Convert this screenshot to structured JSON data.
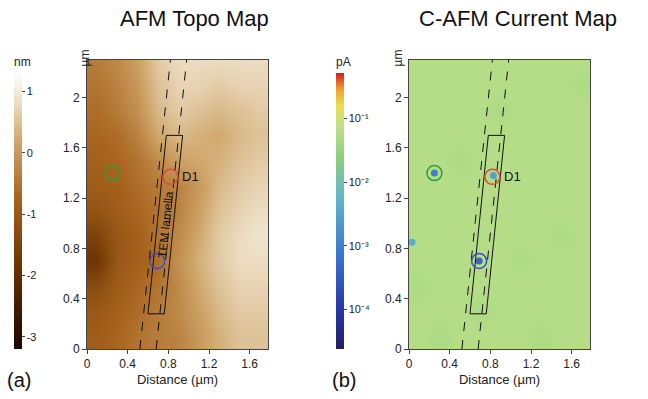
{
  "chart_data": [
    {
      "type": "heatmap",
      "title": "AFM Topo Map",
      "panel": "(a)",
      "x_label": "Distance (µm)",
      "y_label": "µm",
      "x": [
        0.1,
        0.3,
        0.5,
        0.7,
        0.9,
        1.1,
        1.3,
        1.5,
        1.7
      ],
      "y": [
        0.1,
        0.3,
        0.5,
        0.7,
        0.9,
        1.1,
        1.3,
        1.5,
        1.7,
        1.9,
        2.1,
        2.3
      ],
      "z": [
        [
          -0.9,
          -0.7,
          -0.5,
          -0.4,
          -0.3,
          0.0,
          0.3,
          0.5,
          0.5
        ],
        [
          -1.0,
          -0.8,
          -0.6,
          -0.4,
          -0.2,
          0.1,
          0.4,
          0.6,
          0.6
        ],
        [
          -1.3,
          -0.9,
          -0.7,
          -0.5,
          -0.2,
          0.2,
          0.5,
          0.7,
          0.7
        ],
        [
          -1.8,
          -1.0,
          -0.8,
          -0.6,
          -0.1,
          0.3,
          0.6,
          0.8,
          0.8
        ],
        [
          -1.5,
          -1.0,
          -0.8,
          -0.5,
          -0.2,
          0.2,
          0.6,
          0.8,
          0.9
        ],
        [
          -1.1,
          -0.9,
          -0.7,
          -0.5,
          -0.3,
          0.1,
          0.5,
          0.7,
          0.8
        ],
        [
          -0.9,
          -0.8,
          -0.6,
          -0.4,
          -0.3,
          0.0,
          0.4,
          0.6,
          0.7
        ],
        [
          -0.8,
          -0.7,
          -0.5,
          -0.2,
          0.1,
          0.2,
          0.3,
          0.5,
          0.6
        ],
        [
          -0.7,
          -0.6,
          -0.3,
          0.2,
          0.4,
          0.3,
          0.2,
          0.4,
          0.5
        ],
        [
          -0.6,
          -0.4,
          -0.1,
          0.4,
          0.6,
          0.5,
          0.4,
          0.5,
          0.6
        ],
        [
          -0.5,
          -0.3,
          0.0,
          0.5,
          0.7,
          0.7,
          0.6,
          0.7,
          0.7
        ],
        [
          -0.4,
          -0.2,
          0.1,
          0.6,
          0.8,
          0.8,
          0.8,
          0.8,
          0.8
        ]
      ],
      "xlim": [
        0,
        1.78
      ],
      "ylim": [
        0,
        2.3
      ],
      "xticks": [
        0,
        0.4,
        0.8,
        1.2,
        1.6
      ],
      "yticks": [
        0,
        0.4,
        0.8,
        1.2,
        1.6,
        2
      ],
      "colorbar": {
        "title": "nm",
        "range": [
          -3.2,
          1.3
        ],
        "ticks": [
          1,
          0,
          -1,
          -2,
          -3
        ]
      },
      "rectangle": {
        "label": "TEM lamella",
        "corners": [
          [
            0.6,
            0.28
          ],
          [
            0.76,
            0.28
          ],
          [
            0.94,
            1.7
          ],
          [
            0.78,
            1.7
          ]
        ]
      },
      "dashed_lines": [
        [
          [
            0.52,
            0
          ],
          [
            0.82,
            2.3
          ]
        ],
        [
          [
            0.68,
            0
          ],
          [
            0.98,
            2.3
          ]
        ]
      ],
      "circles": [
        {
          "x": 0.25,
          "y": 1.4,
          "color": "#2e9e3e"
        },
        {
          "x": 0.82,
          "y": 1.37,
          "color": "#e0483c",
          "label": "D1"
        },
        {
          "x": 0.69,
          "y": 0.7,
          "color": "#3c4cc8"
        }
      ]
    },
    {
      "type": "heatmap",
      "title": "C-AFM Current Map",
      "panel": "(b)",
      "log": true,
      "x_label": "Distance (µm)",
      "y_label": "µm",
      "x": [
        0.1,
        0.3,
        0.5,
        0.7,
        0.9,
        1.1,
        1.3,
        1.5,
        1.7
      ],
      "y": [
        0.1,
        0.3,
        0.5,
        0.7,
        0.9,
        1.1,
        1.3,
        1.5,
        1.7,
        1.9,
        2.1,
        2.3
      ],
      "z": [
        [
          0.06,
          0.05,
          0.06,
          0.06,
          0.06,
          0.06,
          0.05,
          0.06,
          0.06
        ],
        [
          0.06,
          0.06,
          0.06,
          0.05,
          0.06,
          0.06,
          0.06,
          0.06,
          0.06
        ],
        [
          0.05,
          0.06,
          0.06,
          0.06,
          0.06,
          0.06,
          0.06,
          0.06,
          0.06
        ],
        [
          0.06,
          0.06,
          0.06,
          0.06,
          0.06,
          0.05,
          0.06,
          0.06,
          0.06
        ],
        [
          0.06,
          0.06,
          0.06,
          0.06,
          0.06,
          0.06,
          0.06,
          0.05,
          0.06
        ],
        [
          0.06,
          0.06,
          0.06,
          0.06,
          0.06,
          0.06,
          0.06,
          0.06,
          0.06
        ],
        [
          0.06,
          0.06,
          0.06,
          0.06,
          0.06,
          0.06,
          0.06,
          0.06,
          0.06
        ],
        [
          0.06,
          0.06,
          0.05,
          0.06,
          0.06,
          0.06,
          0.06,
          0.06,
          0.06
        ],
        [
          0.06,
          0.06,
          0.06,
          0.06,
          0.06,
          0.06,
          0.06,
          0.06,
          0.06
        ],
        [
          0.06,
          0.06,
          0.06,
          0.06,
          0.05,
          0.06,
          0.06,
          0.06,
          0.06
        ],
        [
          0.06,
          0.06,
          0.06,
          0.06,
          0.06,
          0.06,
          0.06,
          0.06,
          0.05
        ],
        [
          0.06,
          0.06,
          0.06,
          0.06,
          0.06,
          0.06,
          0.06,
          0.06,
          0.06
        ]
      ],
      "xlim": [
        0,
        1.78
      ],
      "ylim": [
        0,
        2.3
      ],
      "xticks": [
        0,
        0.4,
        0.8,
        1.2,
        1.6
      ],
      "yticks": [
        0,
        0.4,
        0.8,
        1.2,
        1.6,
        2
      ],
      "colorbar": {
        "title": "pA",
        "range": [
          2.4e-05,
          0.52
        ],
        "ticks": [
          {
            "value": 0.1,
            "label": "10⁻¹"
          },
          {
            "value": 0.01,
            "label": "10⁻²"
          },
          {
            "value": 0.001,
            "label": "10⁻³"
          },
          {
            "value": 0.0001,
            "label": "10⁻⁴"
          }
        ]
      },
      "spots": [
        {
          "x": 0.25,
          "y": 1.4,
          "value": 0.001
        },
        {
          "x": 0.83,
          "y": 1.38,
          "value": 0.003
        },
        {
          "x": 0.69,
          "y": 0.7,
          "value": 0.0005
        },
        {
          "x": 0.03,
          "y": 0.85,
          "value": 0.004
        }
      ],
      "rectangle": {
        "corners": [
          [
            0.6,
            0.28
          ],
          [
            0.76,
            0.28
          ],
          [
            0.94,
            1.7
          ],
          [
            0.78,
            1.7
          ]
        ]
      },
      "dashed_lines": [
        [
          [
            0.52,
            0
          ],
          [
            0.82,
            2.3
          ]
        ],
        [
          [
            0.68,
            0
          ],
          [
            0.98,
            2.3
          ]
        ]
      ],
      "circles": [
        {
          "x": 0.25,
          "y": 1.4,
          "color": "#2e9e3e"
        },
        {
          "x": 0.82,
          "y": 1.37,
          "color": "#e0483c",
          "label": "D1"
        },
        {
          "x": 0.69,
          "y": 0.7,
          "color": "#3c4cc8"
        }
      ]
    }
  ]
}
